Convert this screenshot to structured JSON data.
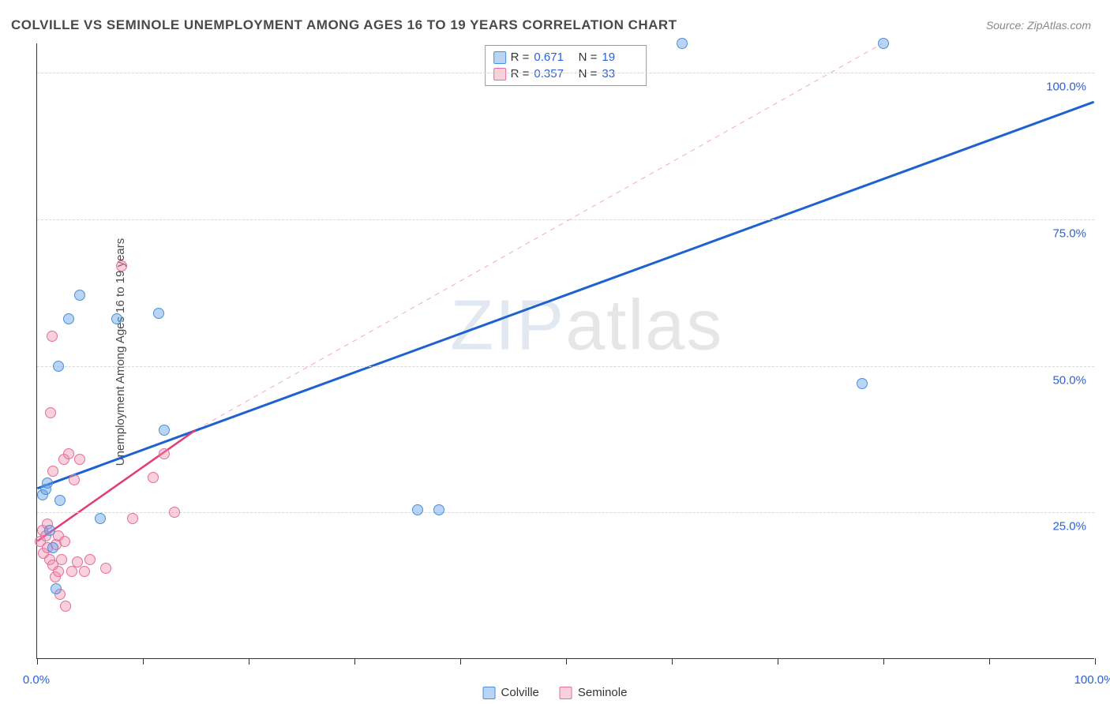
{
  "title": "COLVILLE VS SEMINOLE UNEMPLOYMENT AMONG AGES 16 TO 19 YEARS CORRELATION CHART",
  "source": "Source: ZipAtlas.com",
  "ylabel": "Unemployment Among Ages 16 to 19 years",
  "watermark_bold": "ZIP",
  "watermark_thin": "atlas",
  "chart": {
    "type": "scatter",
    "xlim": [
      0,
      100
    ],
    "ylim": [
      0,
      105
    ],
    "xticks": [
      0,
      10,
      20,
      30,
      40,
      50,
      60,
      70,
      80,
      90,
      100
    ],
    "xtick_labels": {
      "0": "0.0%",
      "100": "100.0%"
    },
    "yticks": [
      25,
      50,
      75,
      100
    ],
    "ytick_labels": {
      "25": "25.0%",
      "50": "50.0%",
      "75": "75.0%",
      "100": "100.0%"
    },
    "grid_color": "#d8d8d8",
    "background_color": "#ffffff",
    "axis_color": "#333333",
    "label_color": "#2962d9",
    "series": [
      {
        "name": "Colville",
        "color_fill": "rgba(100,160,230,0.45)",
        "color_stroke": "#4a8fd8",
        "marker_radius": 7,
        "R": 0.671,
        "N": 19,
        "trend": {
          "x1": 0,
          "y1": 29,
          "x2": 100,
          "y2": 95,
          "stroke": "#1e62d0",
          "width": 3,
          "dash": "none"
        },
        "trend_ext": null,
        "points": [
          [
            0.5,
            28
          ],
          [
            0.8,
            29
          ],
          [
            1.0,
            30
          ],
          [
            1.2,
            22
          ],
          [
            1.5,
            19
          ],
          [
            2.0,
            50
          ],
          [
            3.0,
            58
          ],
          [
            4.0,
            62
          ],
          [
            6.0,
            24
          ],
          [
            7.5,
            58
          ],
          [
            11.5,
            59
          ],
          [
            12.0,
            39
          ],
          [
            36.0,
            25.5
          ],
          [
            38.0,
            25.5
          ],
          [
            61.0,
            105
          ],
          [
            78.0,
            47
          ],
          [
            80.0,
            105
          ],
          [
            1.8,
            12
          ],
          [
            2.2,
            27
          ]
        ]
      },
      {
        "name": "Seminole",
        "color_fill": "rgba(240,140,170,0.40)",
        "color_stroke": "#e86b9a",
        "marker_radius": 7,
        "R": 0.357,
        "N": 33,
        "trend": {
          "x1": 0,
          "y1": 20,
          "x2": 15,
          "y2": 39,
          "stroke": "#e23b77",
          "width": 2.5,
          "dash": "none"
        },
        "trend_ext": {
          "x1": 15,
          "y1": 39,
          "x2": 80,
          "y2": 105,
          "stroke": "#f5a8c0",
          "width": 1,
          "dash": "6,6"
        },
        "points": [
          [
            0.3,
            20
          ],
          [
            0.5,
            22
          ],
          [
            0.6,
            18
          ],
          [
            0.8,
            21
          ],
          [
            1.0,
            19
          ],
          [
            1.0,
            23
          ],
          [
            1.2,
            17
          ],
          [
            1.3,
            42
          ],
          [
            1.4,
            55
          ],
          [
            1.5,
            16
          ],
          [
            1.5,
            32
          ],
          [
            1.7,
            14
          ],
          [
            1.8,
            19.5
          ],
          [
            2.0,
            21
          ],
          [
            2.0,
            15
          ],
          [
            2.2,
            11
          ],
          [
            2.3,
            17
          ],
          [
            2.5,
            34
          ],
          [
            2.6,
            20
          ],
          [
            2.7,
            9
          ],
          [
            3.0,
            35
          ],
          [
            3.3,
            15
          ],
          [
            3.5,
            30.5
          ],
          [
            3.8,
            16.5
          ],
          [
            4.0,
            34
          ],
          [
            4.5,
            15
          ],
          [
            5.0,
            17
          ],
          [
            6.5,
            15.5
          ],
          [
            8.0,
            67
          ],
          [
            9.0,
            24
          ],
          [
            11.0,
            31
          ],
          [
            12.0,
            35
          ],
          [
            13.0,
            25
          ]
        ]
      }
    ],
    "legend_bottom": [
      "Colville",
      "Seminole"
    ]
  }
}
